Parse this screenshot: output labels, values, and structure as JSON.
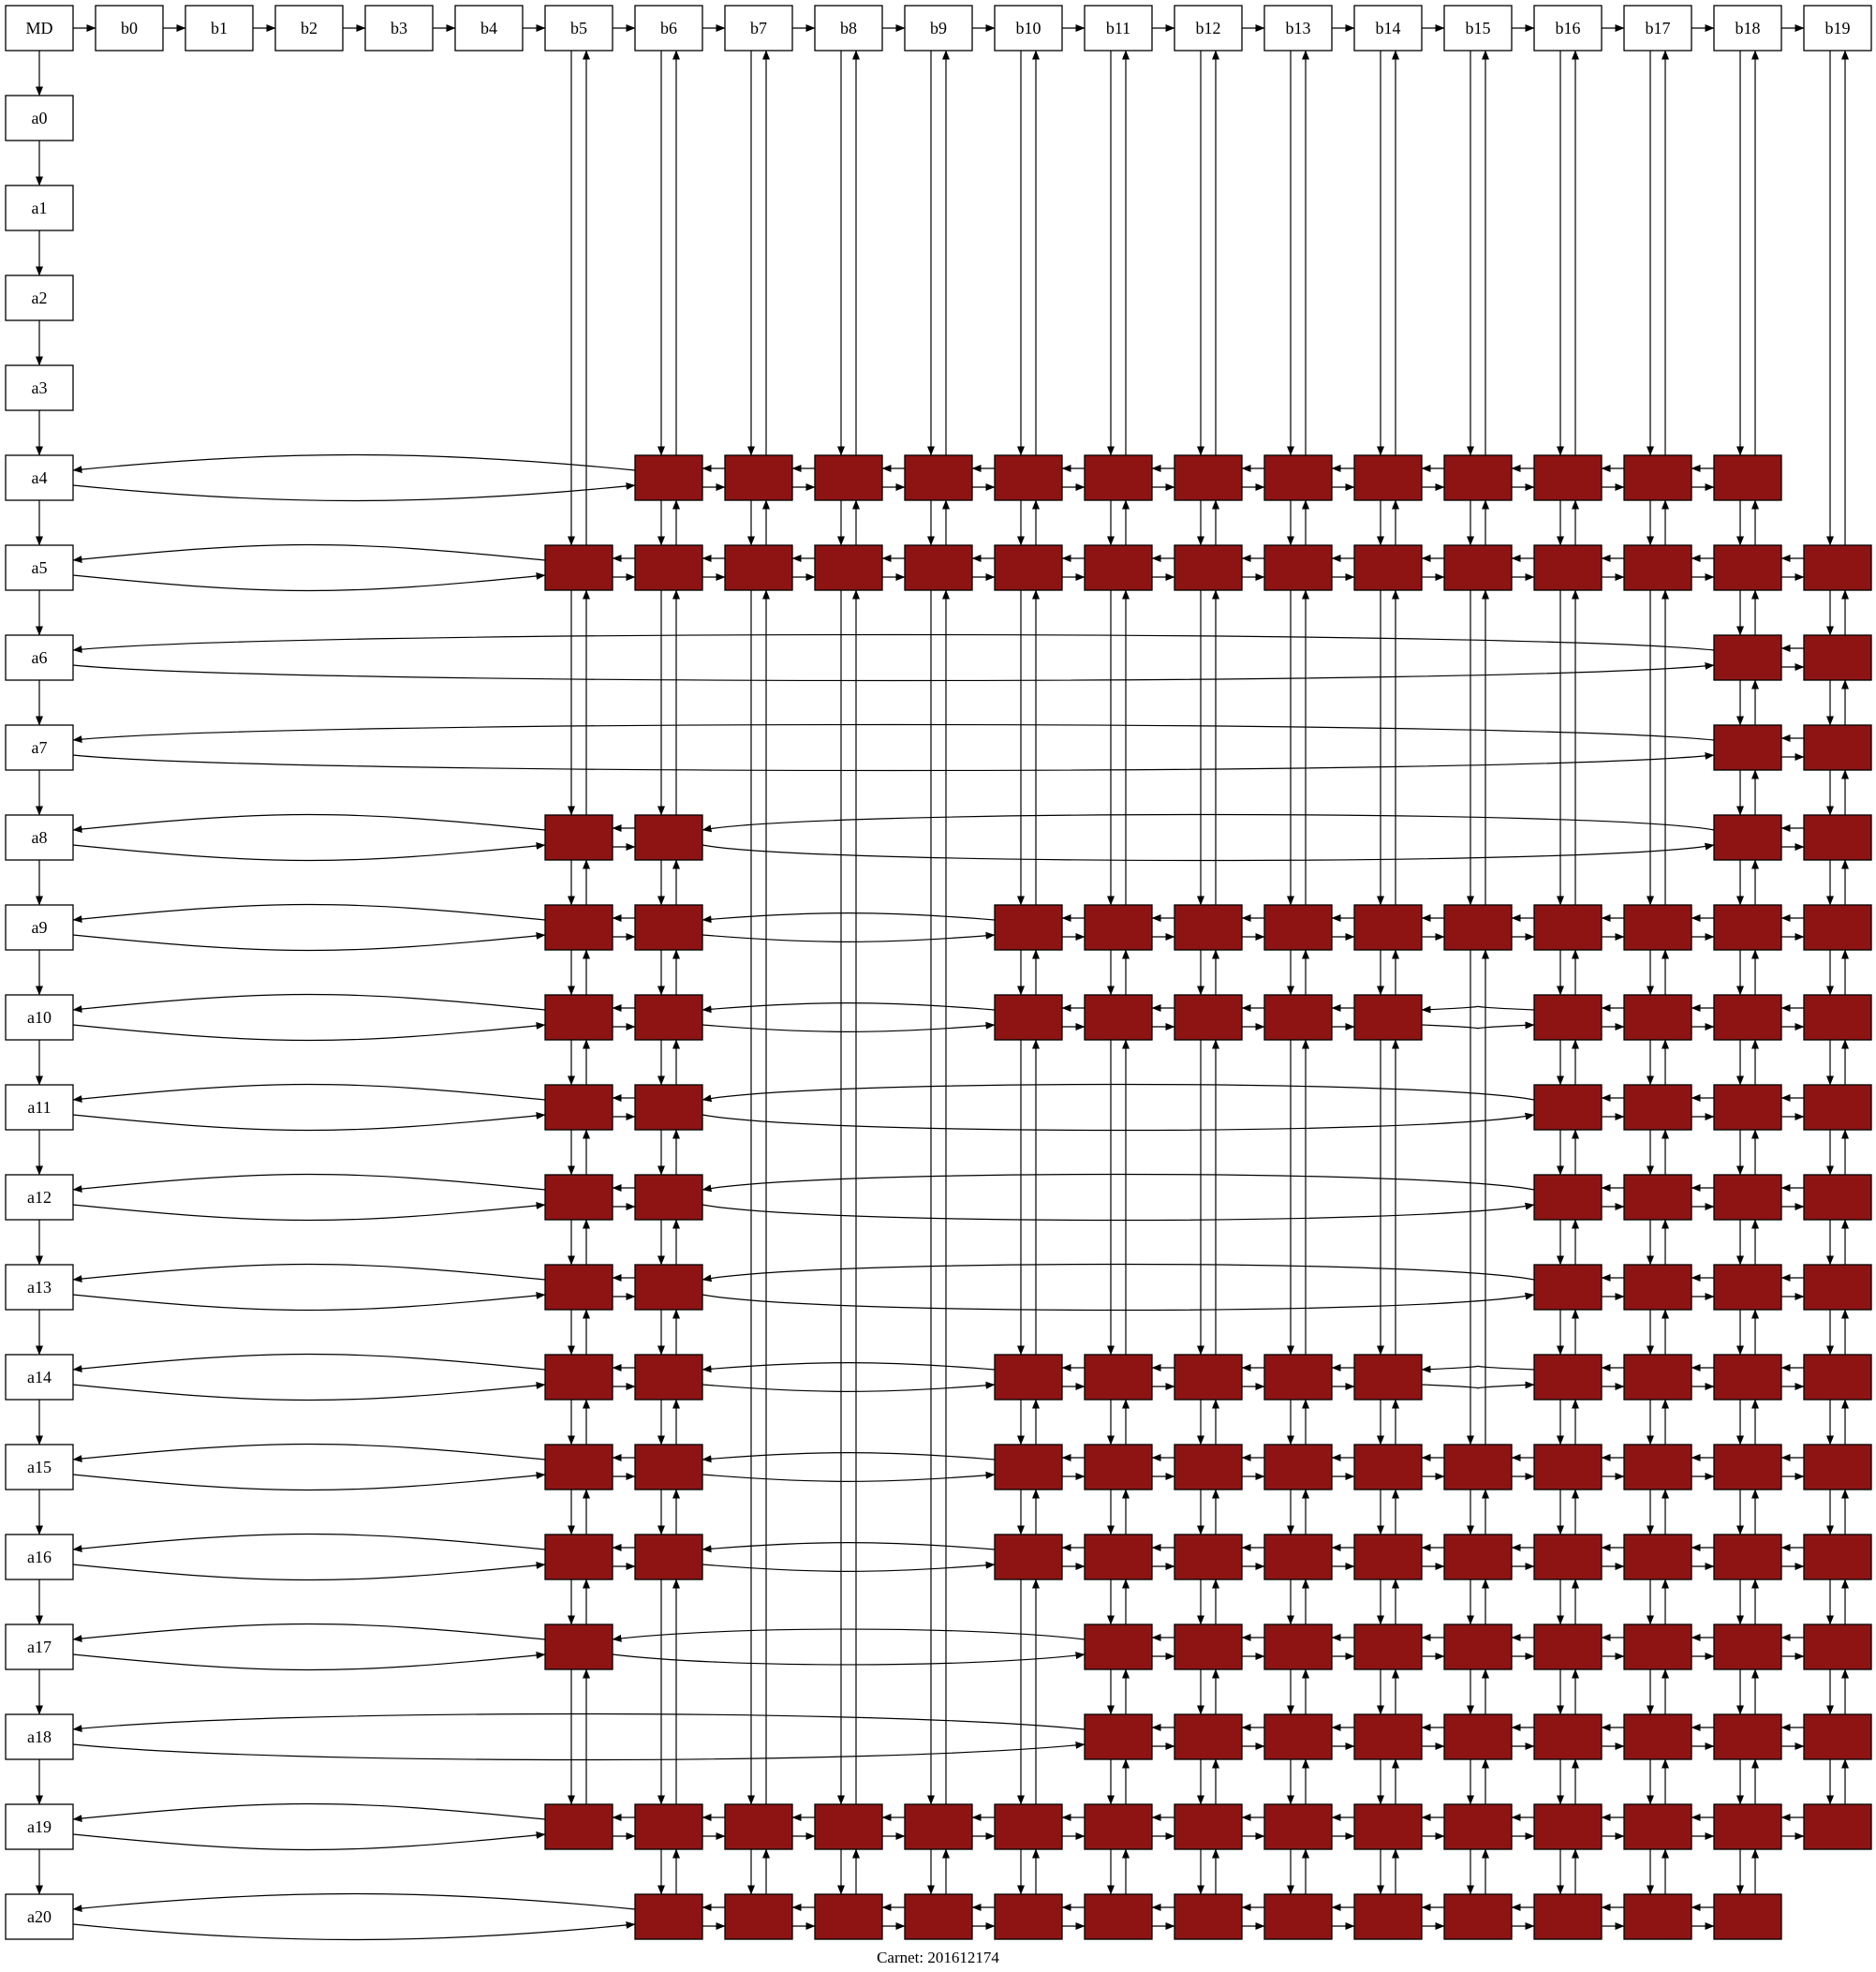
{
  "root_label": "MD",
  "column_headers": [
    "b0",
    "b1",
    "b2",
    "b3",
    "b4",
    "b5",
    "b6",
    "b7",
    "b8",
    "b9",
    "b10",
    "b11",
    "b12",
    "b13",
    "b14",
    "b15",
    "b16",
    "b17",
    "b18",
    "b19"
  ],
  "row_headers": [
    "a0",
    "a1",
    "a2",
    "a3",
    "a4",
    "a5",
    "a6",
    "a7",
    "a8",
    "a9",
    "a10",
    "a11",
    "a12",
    "a13",
    "a14",
    "a15",
    "a16",
    "a17",
    "a18",
    "a19",
    "a20"
  ],
  "cells": {
    "a4": [
      6,
      7,
      8,
      9,
      10,
      11,
      12,
      13,
      14,
      15,
      16,
      17,
      18
    ],
    "a5": [
      5,
      6,
      7,
      8,
      9,
      10,
      11,
      12,
      13,
      14,
      15,
      16,
      17,
      18,
      19
    ],
    "a6": [
      18,
      19
    ],
    "a7": [
      18,
      19
    ],
    "a8": [
      5,
      6,
      18,
      19
    ],
    "a9": [
      5,
      6,
      10,
      11,
      12,
      13,
      14,
      15,
      16,
      17,
      18,
      19
    ],
    "a10": [
      5,
      6,
      10,
      11,
      12,
      13,
      14,
      16,
      17,
      18,
      19
    ],
    "a11": [
      5,
      6,
      16,
      17,
      18,
      19
    ],
    "a12": [
      5,
      6,
      16,
      17,
      18,
      19
    ],
    "a13": [
      5,
      6,
      16,
      17,
      18,
      19
    ],
    "a14": [
      5,
      6,
      10,
      11,
      12,
      13,
      14,
      16,
      17,
      18,
      19
    ],
    "a15": [
      5,
      6,
      10,
      11,
      12,
      13,
      14,
      15,
      16,
      17,
      18,
      19
    ],
    "a16": [
      5,
      6,
      10,
      11,
      12,
      13,
      14,
      15,
      16,
      17,
      18,
      19
    ],
    "a17": [
      5,
      11,
      12,
      13,
      14,
      15,
      16,
      17,
      18,
      19
    ],
    "a18": [
      11,
      12,
      13,
      14,
      15,
      16,
      17,
      18,
      19
    ],
    "a19": [
      5,
      6,
      7,
      8,
      9,
      10,
      11,
      12,
      13,
      14,
      15,
      16,
      17,
      18,
      19
    ],
    "a20": [
      6,
      7,
      8,
      9,
      10,
      11,
      12,
      13,
      14,
      15,
      16,
      17,
      18
    ]
  },
  "colors": {
    "cell_fill": "#8e1414",
    "header_fill": "#ffffff",
    "line": "#000000"
  },
  "caption": "Carnet: 201612174"
}
